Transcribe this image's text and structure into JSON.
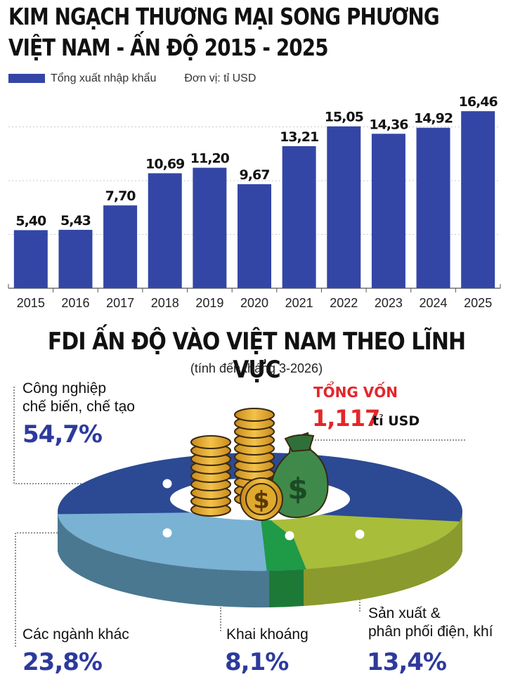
{
  "header": {
    "title_line1": "KIM NGẠCH THƯƠNG MẠI SONG PHƯƠNG",
    "title_line2": "VIỆT NAM - ẤN ĐỘ 2015 - 2025",
    "legend_label": "Tổng xuất nhập khẩu",
    "unit_label": "Đơn vị: tỉ USD"
  },
  "fdi": {
    "title": "FDI ẤN ĐỘ VÀO VIỆT NAM THEO LĨNH VỰC",
    "subtitle": "(tính đến tháng 3-2026)",
    "total_label": "TỔNG VỐN",
    "total_value": "1,117",
    "total_unit": "tỉ USD",
    "segments": [
      {
        "label_line1": "Công nghiệp",
        "label_line2": "chế biến, chế tạo",
        "pct": "54,7%"
      },
      {
        "label_line1": "Sản xuất &",
        "label_line2": "phân phối điện, khí",
        "pct": "13,4%"
      },
      {
        "label_line1": "Khai khoáng",
        "label_line2": "",
        "pct": "8,1%"
      },
      {
        "label_line1": "Các ngành khác",
        "label_line2": "",
        "pct": "23,8%"
      }
    ]
  },
  "chart_data": [
    {
      "type": "bar",
      "title": "KIM NGẠCH THƯƠNG MẠI SONG PHƯƠNG VIỆT NAM - ẤN ĐỘ 2015 - 2025",
      "categories": [
        "2015",
        "2016",
        "2017",
        "2018",
        "2019",
        "2020",
        "2021",
        "2022",
        "2023",
        "2024",
        "2025"
      ],
      "values": [
        5.4,
        5.43,
        7.7,
        10.69,
        11.2,
        9.67,
        13.21,
        15.05,
        14.36,
        14.92,
        16.46
      ],
      "value_labels": [
        "5,40",
        "5,43",
        "7,70",
        "10,69",
        "11,20",
        "9,67",
        "13,21",
        "15,05",
        "14,36",
        "14,92",
        "16,46"
      ],
      "series_name": "Tổng xuất nhập khẩu",
      "unit": "Đơn vị: tỉ USD",
      "ylim": [
        0,
        20
      ],
      "grid": true,
      "color": "#3346a6"
    },
    {
      "type": "pie",
      "title": "FDI ẤN ĐỘ VÀO VIỆT NAM THEO LĨNH VỰC",
      "labels": [
        "Công nghiệp chế biến, chế tạo",
        "Sản xuất & phân phối điện, khí",
        "Khai khoáng",
        "Các ngành khác"
      ],
      "values": [
        54.7,
        13.4,
        8.1,
        23.8
      ],
      "colors": [
        "#2b4a93",
        "#a8bd3a",
        "#1f9a47",
        "#7ab2d4"
      ]
    }
  ]
}
